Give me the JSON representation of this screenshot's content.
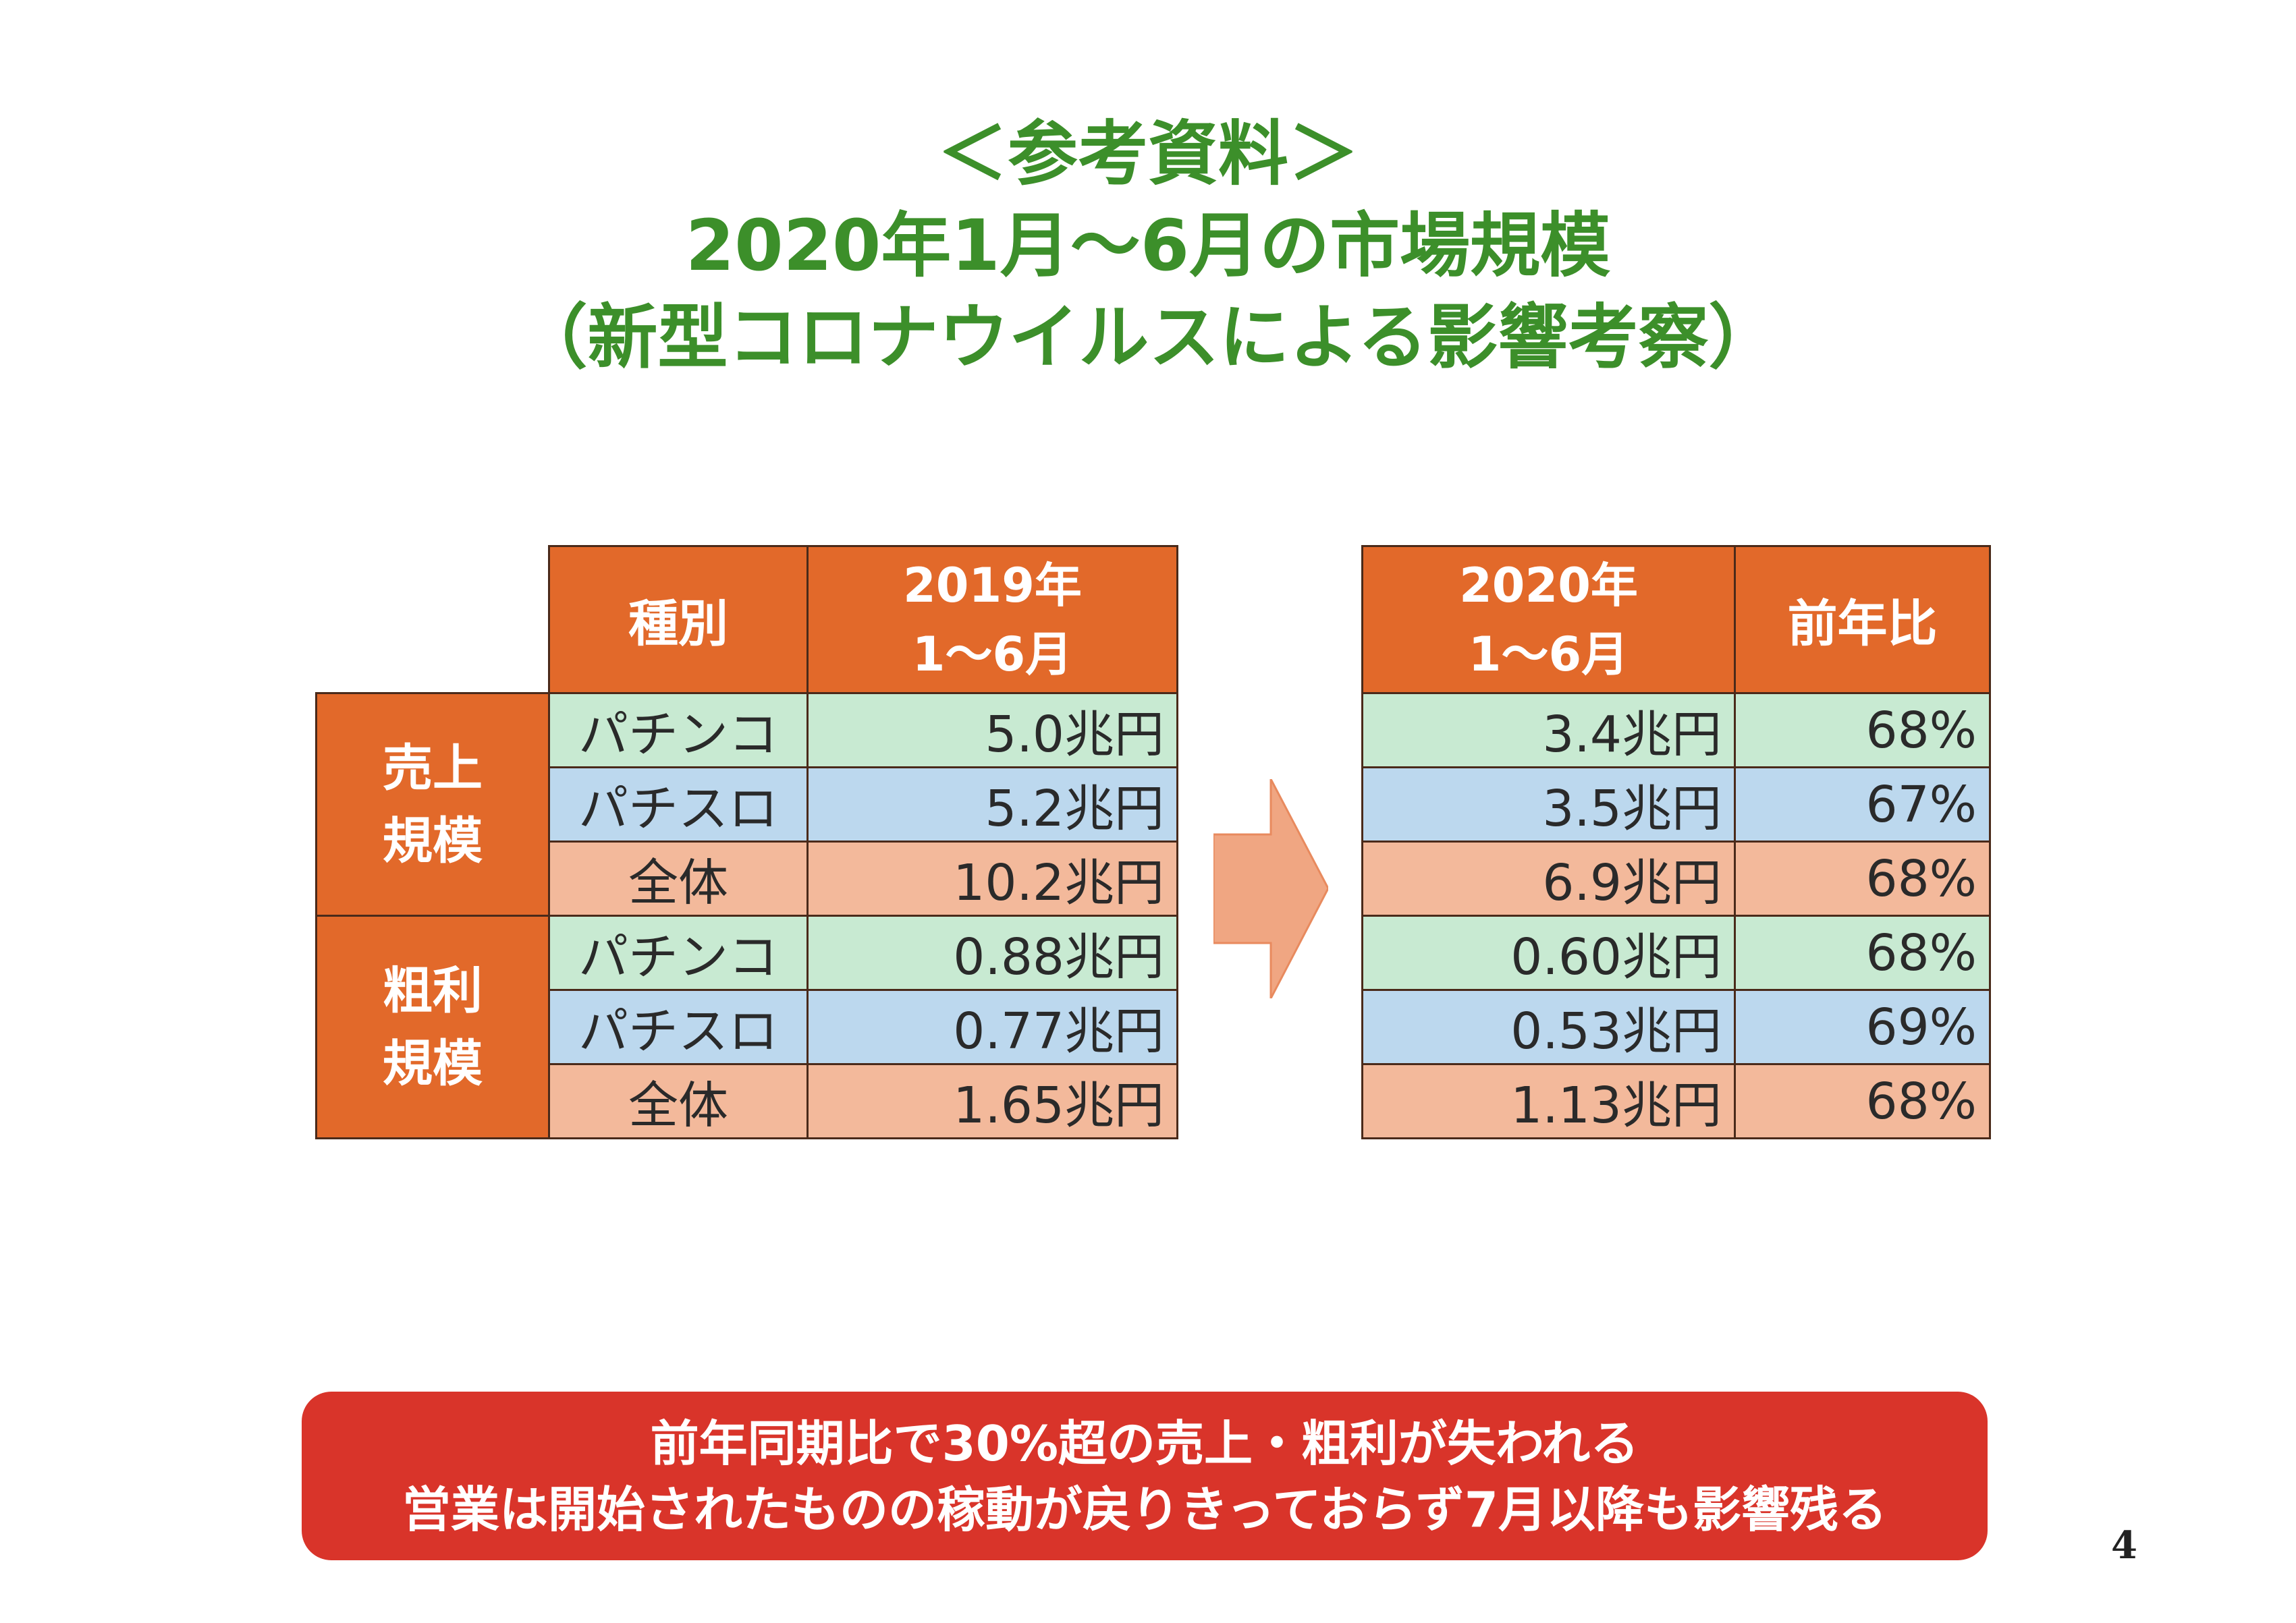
{
  "title": {
    "line1": "＜参考資料＞",
    "line2": "2020年1月～6月の市場規模",
    "line3": "（新型コロナウイルスによる影響考察）"
  },
  "table_2019": {
    "header_kind": "種別",
    "header_period_line1": "2019年",
    "header_period_line2": "1～6月",
    "groups": [
      {
        "label_line1": "売上",
        "label_line2": "規模",
        "rows": [
          {
            "kind": "パチンコ",
            "value": "5.0兆円"
          },
          {
            "kind": "パチスロ",
            "value": "5.2兆円"
          },
          {
            "kind": "全体",
            "value": "10.2兆円"
          }
        ]
      },
      {
        "label_line1": "粗利",
        "label_line2": "規模",
        "rows": [
          {
            "kind": "パチンコ",
            "value": "0.88兆円"
          },
          {
            "kind": "パチスロ",
            "value": "0.77兆円"
          },
          {
            "kind": "全体",
            "value": "1.65兆円"
          }
        ]
      }
    ]
  },
  "table_2020": {
    "header_period_line1": "2020年",
    "header_period_line2": "1～6月",
    "header_ratio": "前年比",
    "rows": [
      {
        "value": "3.4兆円",
        "ratio": "68%"
      },
      {
        "value": "3.5兆円",
        "ratio": "67%"
      },
      {
        "value": "6.9兆円",
        "ratio": "68%"
      },
      {
        "value": "0.60兆円",
        "ratio": "68%"
      },
      {
        "value": "0.53兆円",
        "ratio": "69%"
      },
      {
        "value": "1.13兆円",
        "ratio": "68%"
      }
    ]
  },
  "banner": {
    "line1": "前年同期比で30%超の売上・粗利が失われる",
    "line2": "営業は開始されたものの稼動が戻りきっておらず7月以降も影響残る"
  },
  "page_number": "4",
  "colors": {
    "title_green": "#3c8f2a",
    "header_orange": "#e2692a",
    "row_green": "#c8ead2",
    "row_blue": "#bcd8ee",
    "row_orange": "#f3b99b",
    "banner_red": "#d9342a",
    "arrow_orange": "#f0a682"
  }
}
